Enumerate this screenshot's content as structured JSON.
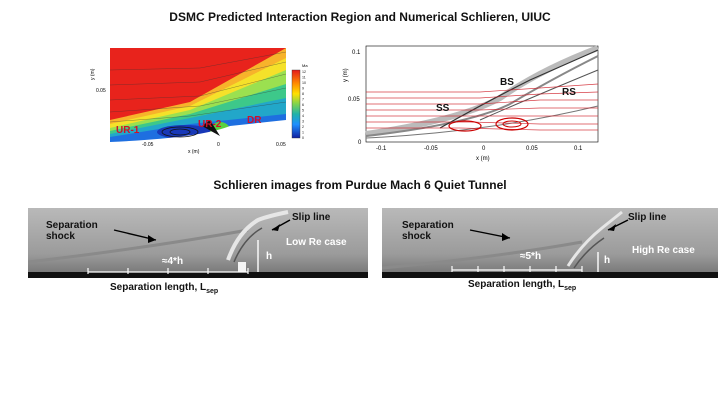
{
  "header": {
    "title": "DSMC Predicted Interaction Region and Numerical Schlieren, UIUC",
    "subtitle": "Schlieren images from Purdue Mach 6 Quiet Tunnel"
  },
  "dsmc_panel": {
    "y_axis_label": "y (m)",
    "x_axis_label": "x (m)",
    "y_tick": "0.05",
    "x_ticks": [
      "-0.05",
      "0",
      "0.05"
    ],
    "colorbar_title": "Ma",
    "colorbar_ticks": [
      "12",
      "11",
      "10",
      "9",
      "8",
      "7",
      "6",
      "5",
      "4",
      "3",
      "2",
      "1",
      "0"
    ],
    "region_labels": [
      "UR-1",
      "UR-2",
      "DR"
    ]
  },
  "schlieren_num_panel": {
    "y_axis_label": "y (m)",
    "x_axis_label": "x (m)",
    "y_ticks": [
      "0.1",
      "0.05",
      "0"
    ],
    "x_ticks": [
      "-0.1",
      "-0.05",
      "0",
      "0.05",
      "0.1"
    ],
    "shock_labels": [
      "SS",
      "BS",
      "RS"
    ]
  },
  "low_re_panel": {
    "shock_label": "Separation\nshock",
    "slip_label": "Slip line",
    "height_label": "h",
    "case_label": "Low Re case",
    "ratio_label": "≈4*h",
    "sep_label": "Separation length, L",
    "sep_sub": "sep"
  },
  "high_re_panel": {
    "shock_label": "Separation\nshock",
    "slip_label": "Slip line",
    "height_label": "h",
    "case_label": "High Re case",
    "ratio_label": "≈5*h",
    "sep_label": "Separation length, L",
    "sep_sub": "sep"
  }
}
